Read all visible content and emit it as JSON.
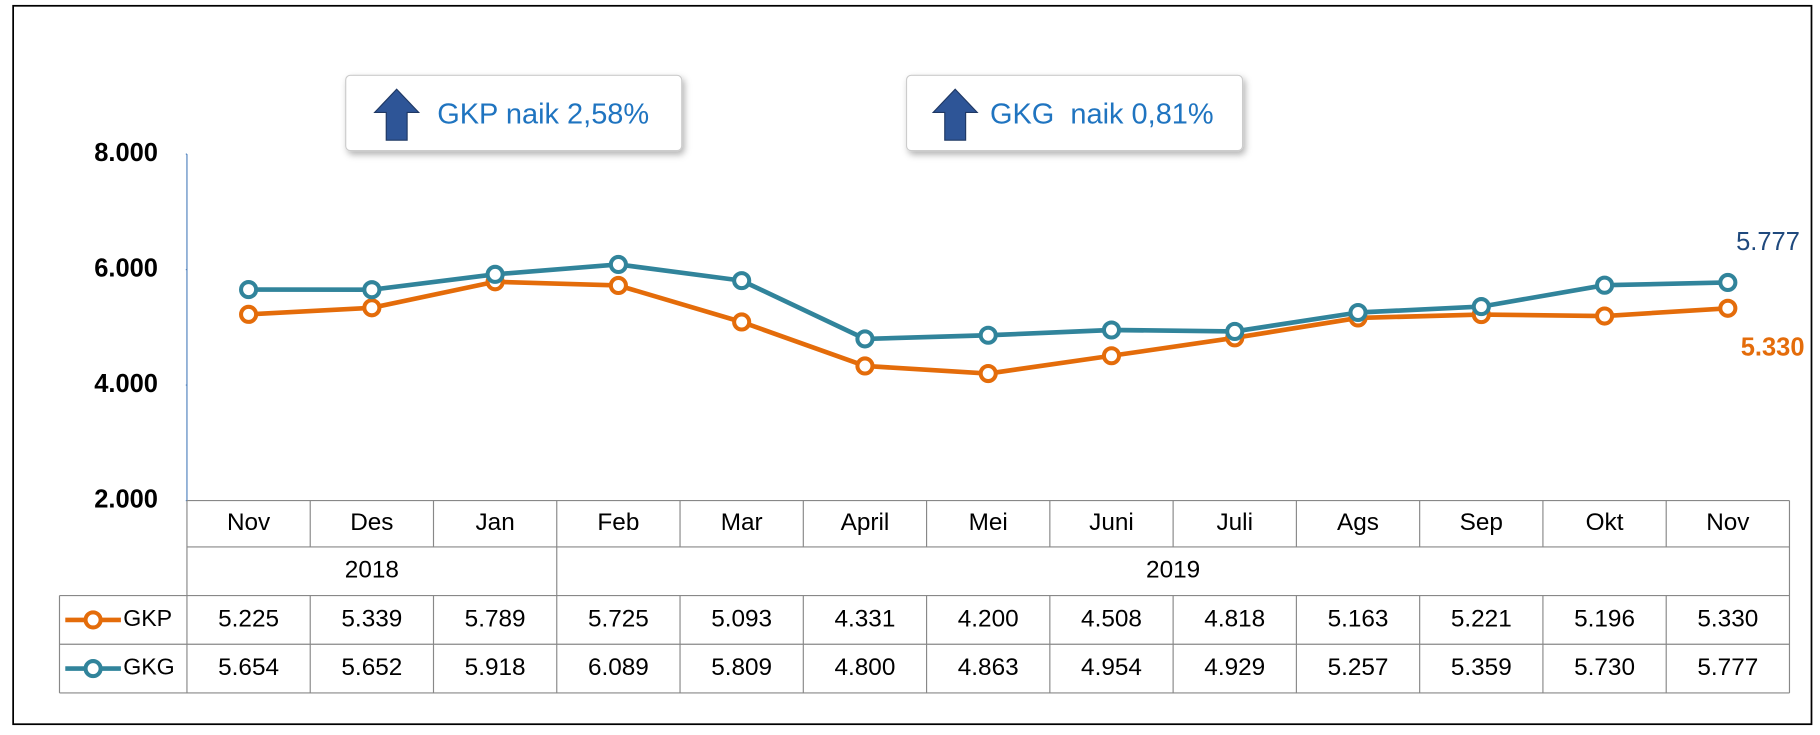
{
  "chart_data": {
    "type": "line",
    "annotations": [
      "GKP naik 2,58%",
      "GKG  naik 0,81%"
    ],
    "categories": [
      "Nov",
      "Des",
      "Jan",
      "Feb",
      "Mar",
      "April",
      "Mei",
      "Juni",
      "Juli",
      "Ags",
      "Sep",
      "Okt",
      "Nov"
    ],
    "year_groups": [
      {
        "label": "2018",
        "span": 3
      },
      {
        "label": "2019",
        "span": 10
      }
    ],
    "series": [
      {
        "name": "GKP",
        "color": "#e46c0a",
        "values": [
          5225,
          5339,
          5789,
          5725,
          5093,
          4331,
          4200,
          4508,
          4818,
          5163,
          5221,
          5196,
          5330
        ],
        "value_labels": [
          "5.225",
          "5.339",
          "5.789",
          "5.725",
          "5.093",
          "4.331",
          "4.200",
          "4.508",
          "4.818",
          "5.163",
          "5.221",
          "5.196",
          "5.330"
        ]
      },
      {
        "name": "GKG",
        "color": "#31849b",
        "values": [
          5654,
          5652,
          5918,
          6089,
          5809,
          4800,
          4863,
          4954,
          4929,
          5257,
          5359,
          5730,
          5777
        ],
        "value_labels": [
          "5.654",
          "5.652",
          "5.918",
          "6.089",
          "5.809",
          "4.800",
          "4.863",
          "4.954",
          "4.929",
          "5.257",
          "5.359",
          "5.730",
          "5.777"
        ]
      }
    ],
    "ylim": [
      2000,
      8000
    ],
    "yticks": [
      {
        "value": 2000,
        "label": "2.000"
      },
      {
        "value": 4000,
        "label": "4.000"
      },
      {
        "value": 6000,
        "label": "6.000"
      },
      {
        "value": 8000,
        "label": "8.000"
      }
    ]
  }
}
